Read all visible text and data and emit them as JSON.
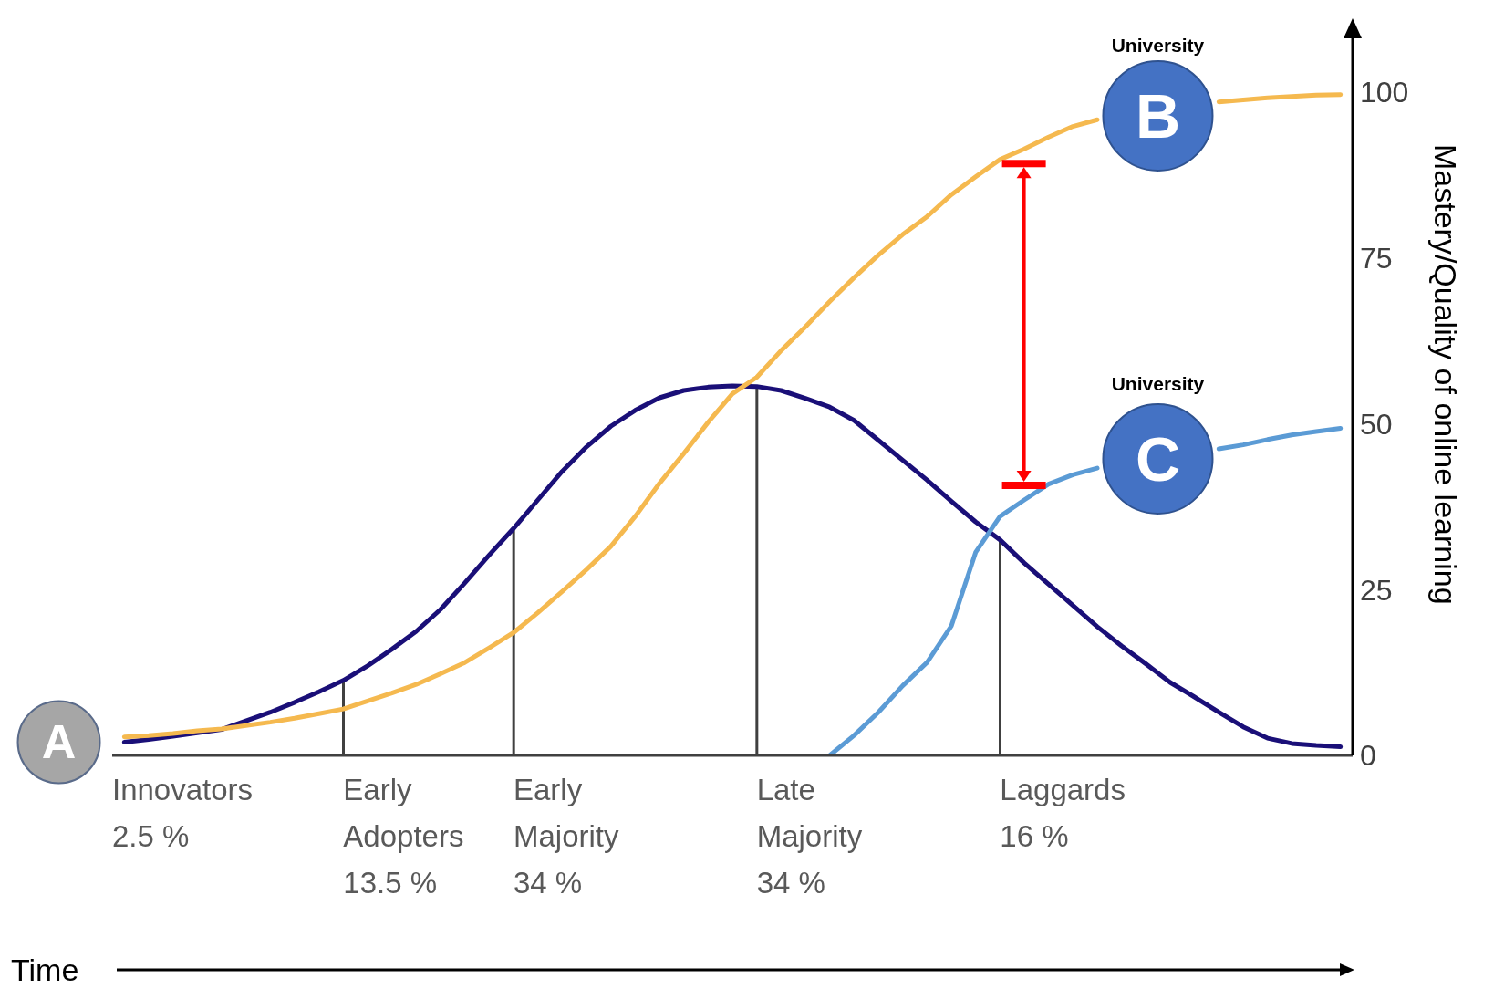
{
  "chart_data": {
    "type": "line",
    "ylabel": "Mastery/Quality of online learning",
    "categories": [
      null,
      null,
      null,
      null,
      null,
      null,
      null,
      null,
      null,
      null,
      null,
      null,
      null,
      null,
      null,
      null,
      null,
      null,
      null,
      null,
      null,
      null,
      null,
      null,
      null,
      null,
      null,
      null,
      null,
      null,
      null,
      null,
      null,
      null,
      null,
      null,
      null,
      null,
      null,
      null,
      null,
      null,
      null,
      null,
      null,
      null,
      null,
      null,
      null,
      null,
      null
    ],
    "ylim": [
      0,
      110
    ],
    "yticks": [
      0,
      25,
      50,
      75,
      100
    ],
    "tick_labels": "y",
    "series": [
      {
        "color": "#1a0f78",
        "values": [
          2.0,
          2.4,
          2.9,
          3.4,
          3.9,
          5.2,
          6.5,
          8.0,
          9.6,
          11.3,
          13.5,
          16.0,
          18.7,
          22.0,
          26.0,
          30.2,
          34.2,
          38.5,
          42.8,
          46.5,
          49.6,
          52.0,
          53.9,
          55.0,
          55.5,
          55.7,
          55.6,
          55.0,
          53.8,
          52.5,
          50.5,
          47.5,
          44.5,
          41.5,
          38.3,
          35.2,
          32.5,
          29.0,
          25.8,
          22.6,
          19.4,
          16.5,
          13.8,
          11.0,
          8.8,
          6.5,
          4.3,
          2.6,
          1.8,
          1.5,
          1.3
        ]
      },
      {
        "color": "#f5b94f",
        "values": [
          2.8,
          3.0,
          3.3,
          3.7,
          4.0,
          4.5,
          5.0,
          5.6,
          6.3,
          7.0,
          8.2,
          9.4,
          10.7,
          12.3,
          14.0,
          16.2,
          18.5,
          21.5,
          24.7,
          28.0,
          31.5,
          36.0,
          41.0,
          45.5,
          50.2,
          54.5,
          57.0,
          61.0,
          64.6,
          68.4,
          72.0,
          75.4,
          78.5,
          81.2,
          84.5,
          87.2,
          89.8,
          91.4,
          93.2,
          94.8,
          95.8,
          null,
          null,
          null,
          null,
          98.5,
          98.8,
          99.1,
          99.3,
          99.5,
          99.6
        ]
      },
      {
        "color": "#5b9bd5",
        "values": [
          null,
          null,
          null,
          null,
          null,
          null,
          null,
          null,
          null,
          null,
          null,
          null,
          null,
          null,
          null,
          null,
          null,
          null,
          null,
          null,
          null,
          null,
          null,
          null,
          null,
          null,
          null,
          null,
          null,
          0,
          3.0,
          6.5,
          10.5,
          14.0,
          19.5,
          30.6,
          36.0,
          38.5,
          40.9,
          42.3,
          43.3,
          null,
          null,
          null,
          null,
          46.2,
          46.8,
          47.6,
          48.3,
          48.8,
          49.3
        ]
      },
      {
        "type": "bar",
        "color": "#404040",
        "values": [
          null,
          null,
          null,
          null,
          null,
          null,
          null,
          null,
          null,
          11.3,
          null,
          null,
          null,
          null,
          null,
          null,
          34.2,
          null,
          null,
          null,
          null,
          null,
          null,
          null,
          null,
          null,
          55.6,
          null,
          null,
          null,
          null,
          null,
          null,
          null,
          null,
          null,
          32.5,
          null,
          null,
          null,
          null,
          null,
          null,
          null,
          null,
          null,
          null,
          null,
          null,
          null,
          null
        ]
      }
    ],
    "annotations": [
      "Innovators\n2.5 %",
      "Early\nAdopters\n13.5 %",
      "Early\nMajority\n34 %",
      "Late\nMajority\n34 %",
      "Laggards\n16 %",
      "A",
      "B",
      "C",
      "University",
      "University",
      "Time"
    ]
  }
}
